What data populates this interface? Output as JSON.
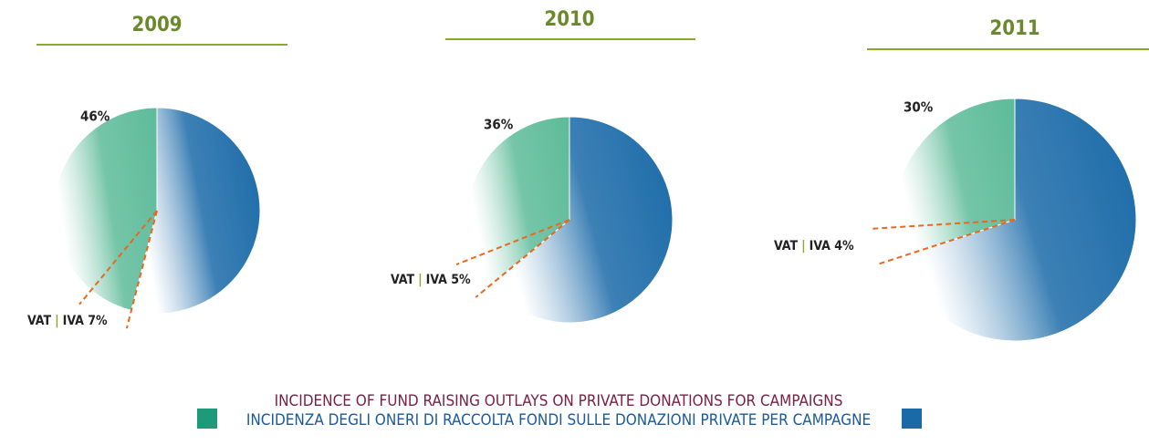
{
  "chart_data": [
    {
      "type": "pie",
      "title": "2009",
      "values": [
        46,
        54
      ],
      "value_labels": [
        "46%",
        null
      ],
      "colors": [
        "#5dbb9a",
        "#1a6aa8"
      ],
      "vat": {
        "text": "VAT",
        "separator": "|",
        "label": "IVA 7%",
        "value": 7
      }
    },
    {
      "type": "pie",
      "title": "2010",
      "values": [
        36,
        64
      ],
      "value_labels": [
        "36%",
        null
      ],
      "colors": [
        "#5dbb9a",
        "#1a6aa8"
      ],
      "vat": {
        "text": "VAT",
        "separator": "|",
        "label": "IVA 5%",
        "value": 5
      }
    },
    {
      "type": "pie",
      "title": "2011",
      "values": [
        30,
        70
      ],
      "value_labels": [
        "30%",
        null
      ],
      "colors": [
        "#5dbb9a",
        "#1a6aa8"
      ],
      "vat": {
        "text": "VAT",
        "separator": "|",
        "label": "IVA  4%",
        "value": 4
      }
    }
  ],
  "legend": {
    "lines": [
      "INCIDENCE OF FUND RAISING OUTLAYS ON PRIVATE DONATIONS FOR CAMPAIGNS",
      "INCIDENZA DEGLI ONERI DI RACCOLTA FONDI SULLE DONAZIONI PRIVATE PER CAMPAGNE"
    ],
    "colors": [
      "#1e9a78",
      "#1a6aa8"
    ]
  }
}
